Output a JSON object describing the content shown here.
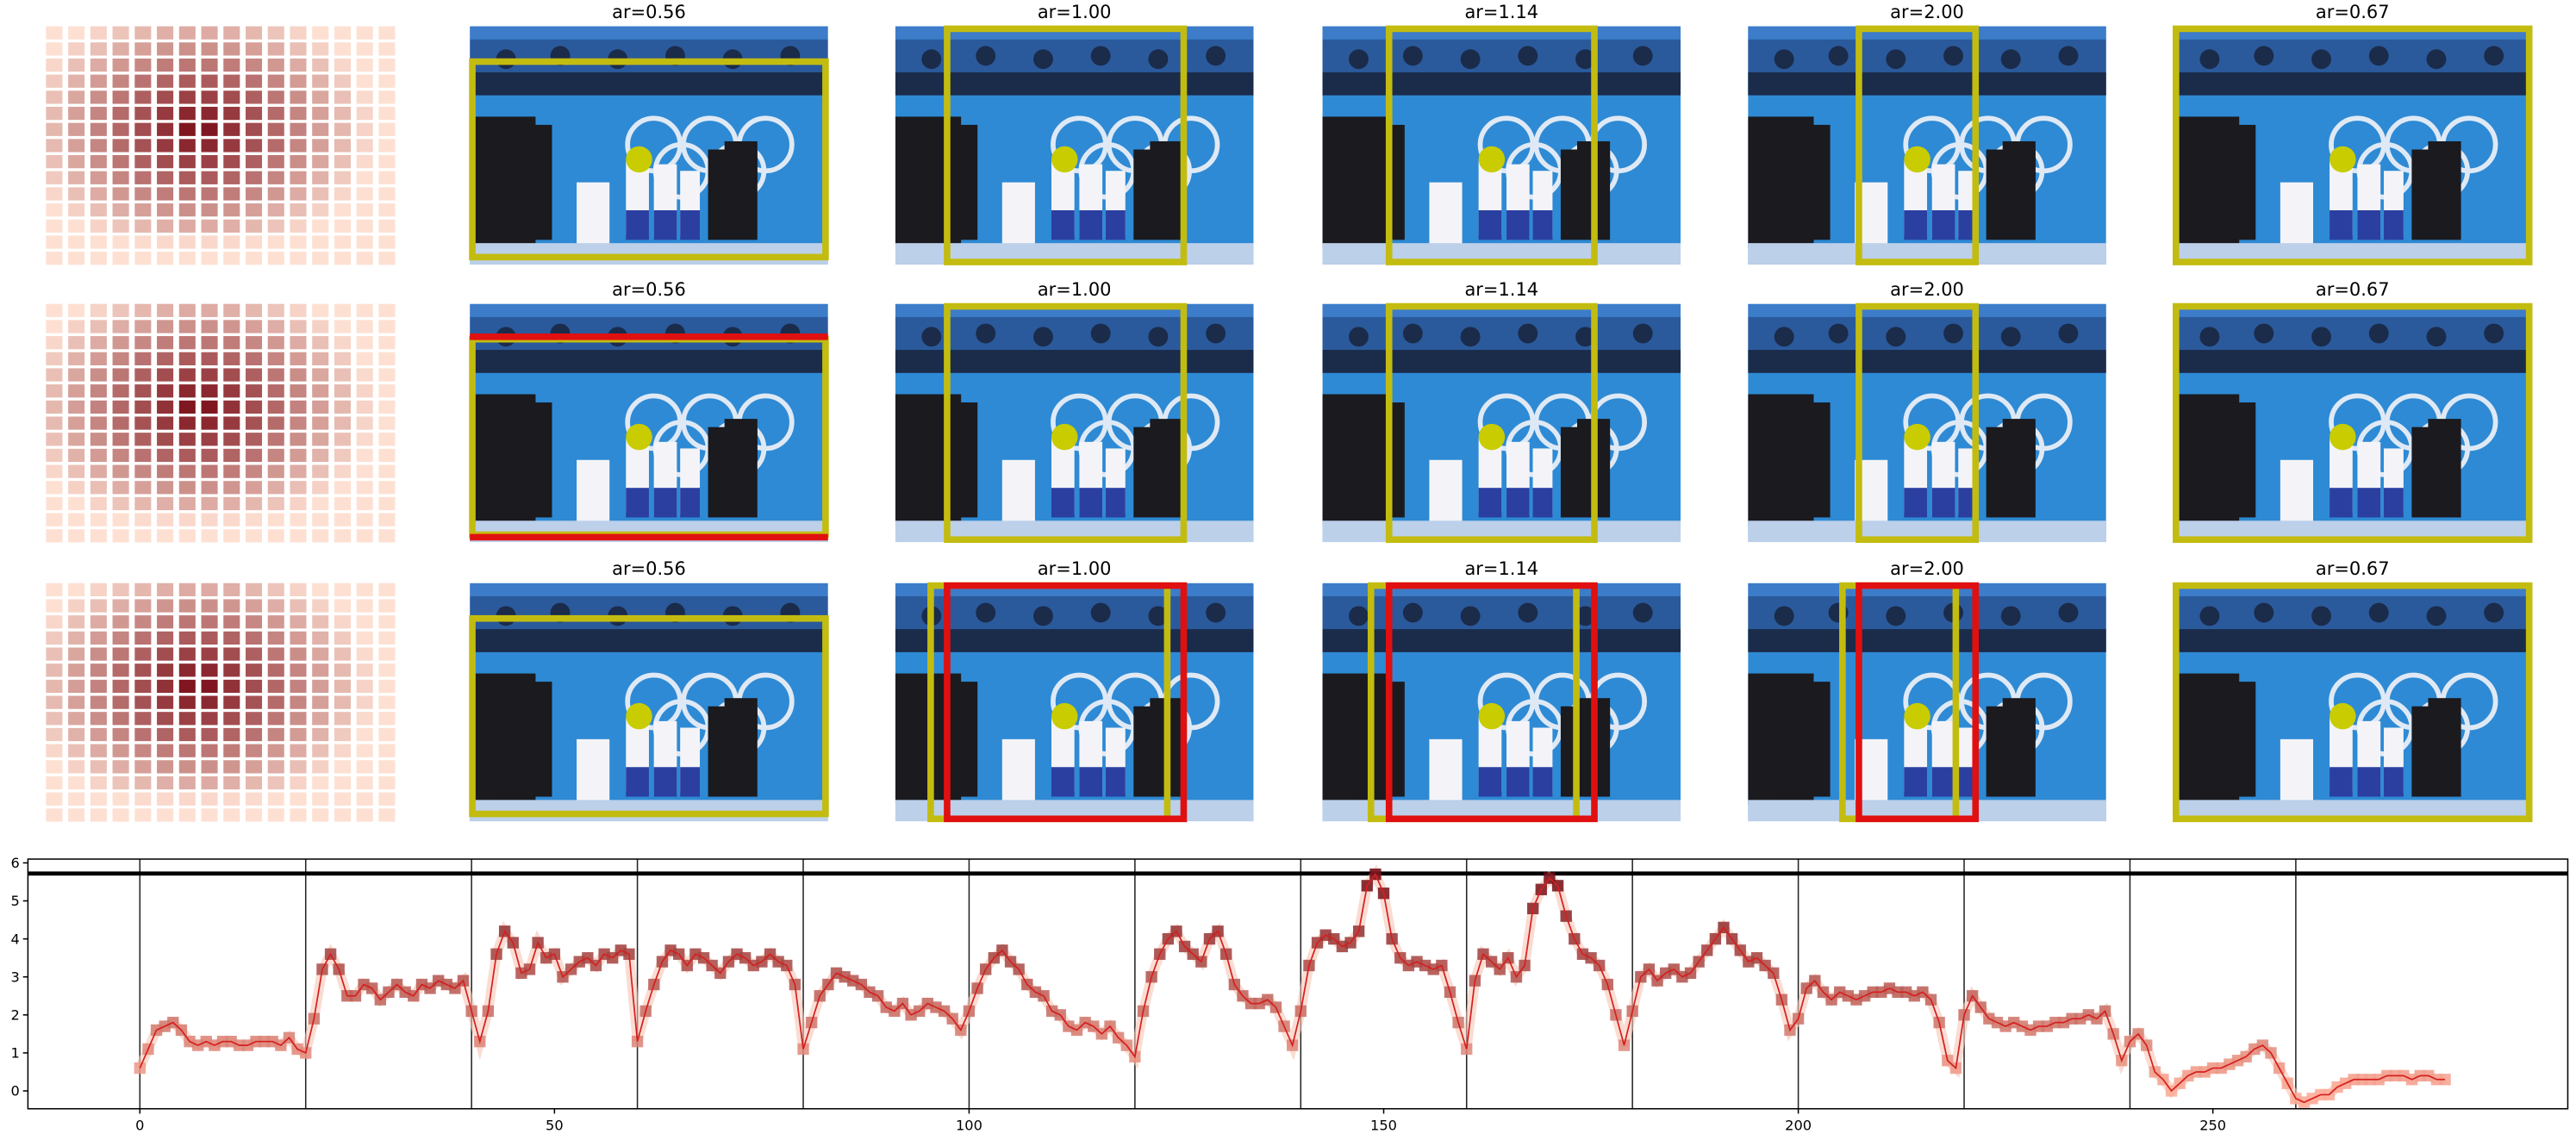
{
  "panel_titles": [
    [
      "ar=0.56",
      "ar=1.00",
      "ar=1.14",
      "ar=2.00",
      "ar=0.67"
    ],
    [
      "ar=0.56",
      "ar=1.00",
      "ar=1.14",
      "ar=2.00",
      "ar=0.67"
    ],
    [
      "ar=0.56",
      "ar=1.00",
      "ar=1.14",
      "ar=2.00",
      "ar=0.67"
    ]
  ],
  "chart_data": {
    "type": "line",
    "color": "#d42020",
    "xlim": [
      -13.5,
      292.8
    ],
    "ylim": [
      -0.47,
      6.1
    ],
    "xticks": [
      0,
      50,
      100,
      150,
      200,
      250
    ],
    "yticks": [
      0,
      1,
      2,
      3,
      4,
      5,
      6
    ],
    "vlines": [
      0,
      20,
      40,
      60,
      80,
      100,
      120,
      140,
      160,
      180,
      200,
      220,
      240,
      260
    ],
    "hline": 5.72,
    "x": [
      0,
      1,
      2,
      3,
      4,
      5,
      6,
      7,
      8,
      9,
      10,
      11,
      12,
      13,
      14,
      15,
      16,
      17,
      18,
      19,
      20,
      21,
      22,
      23,
      24,
      25,
      26,
      27,
      28,
      29,
      30,
      31,
      32,
      33,
      34,
      35,
      36,
      37,
      38,
      39,
      40,
      41,
      42,
      43,
      44,
      45,
      46,
      47,
      48,
      49,
      50,
      51,
      52,
      53,
      54,
      55,
      56,
      57,
      58,
      59,
      60,
      61,
      62,
      63,
      64,
      65,
      66,
      67,
      68,
      69,
      70,
      71,
      72,
      73,
      74,
      75,
      76,
      77,
      78,
      79,
      80,
      81,
      82,
      83,
      84,
      85,
      86,
      87,
      88,
      89,
      90,
      91,
      92,
      93,
      94,
      95,
      96,
      97,
      98,
      99,
      100,
      101,
      102,
      103,
      104,
      105,
      106,
      107,
      108,
      109,
      110,
      111,
      112,
      113,
      114,
      115,
      116,
      117,
      118,
      119,
      120,
      121,
      122,
      123,
      124,
      125,
      126,
      127,
      128,
      129,
      130,
      131,
      132,
      133,
      134,
      135,
      136,
      137,
      138,
      139,
      140,
      141,
      142,
      143,
      144,
      145,
      146,
      147,
      148,
      149,
      150,
      151,
      152,
      153,
      154,
      155,
      156,
      157,
      158,
      159,
      160,
      161,
      162,
      163,
      164,
      165,
      166,
      167,
      168,
      169,
      170,
      171,
      172,
      173,
      174,
      175,
      176,
      177,
      178,
      179,
      180,
      181,
      182,
      183,
      184,
      185,
      186,
      187,
      188,
      189,
      190,
      191,
      192,
      193,
      194,
      195,
      196,
      197,
      198,
      199,
      200,
      201,
      202,
      203,
      204,
      205,
      206,
      207,
      208,
      209,
      210,
      211,
      212,
      213,
      214,
      215,
      216,
      217,
      218,
      219,
      220,
      221,
      222,
      223,
      224,
      225,
      226,
      227,
      228,
      229,
      230,
      231,
      232,
      233,
      234,
      235,
      236,
      237,
      238,
      239,
      240,
      241,
      242,
      243,
      244,
      245,
      246,
      247,
      248,
      249,
      250,
      251,
      252,
      253,
      254,
      255,
      256,
      257,
      258,
      259,
      260,
      261,
      262,
      263,
      264,
      265,
      266,
      267,
      268,
      269,
      270,
      271,
      272,
      273,
      274,
      275,
      276,
      277,
      278
    ],
    "values": [
      0.6,
      1.1,
      1.6,
      1.7,
      1.8,
      1.6,
      1.3,
      1.2,
      1.3,
      1.2,
      1.3,
      1.3,
      1.2,
      1.2,
      1.3,
      1.3,
      1.3,
      1.2,
      1.4,
      1.1,
      1.0,
      1.9,
      3.2,
      3.6,
      3.2,
      2.5,
      2.5,
      2.8,
      2.7,
      2.4,
      2.6,
      2.8,
      2.6,
      2.5,
      2.8,
      2.7,
      2.9,
      2.8,
      2.7,
      2.9,
      2.1,
      1.3,
      2.1,
      3.6,
      4.2,
      3.9,
      3.1,
      3.2,
      3.9,
      3.5,
      3.6,
      3.0,
      3.2,
      3.4,
      3.5,
      3.3,
      3.6,
      3.5,
      3.7,
      3.6,
      1.3,
      2.1,
      2.8,
      3.4,
      3.7,
      3.6,
      3.3,
      3.6,
      3.5,
      3.3,
      3.1,
      3.4,
      3.6,
      3.5,
      3.3,
      3.4,
      3.6,
      3.4,
      3.3,
      2.8,
      1.1,
      1.8,
      2.5,
      2.8,
      3.1,
      3.0,
      2.9,
      2.8,
      2.6,
      2.5,
      2.2,
      2.1,
      2.3,
      2.0,
      2.1,
      2.3,
      2.2,
      2.1,
      1.9,
      1.6,
      2.1,
      2.7,
      3.2,
      3.5,
      3.7,
      3.4,
      3.2,
      2.8,
      2.6,
      2.5,
      2.1,
      2.0,
      1.7,
      1.6,
      1.8,
      1.7,
      1.5,
      1.7,
      1.4,
      1.2,
      0.9,
      2.1,
      3.0,
      3.6,
      4.0,
      4.2,
      3.8,
      3.6,
      3.4,
      4.0,
      4.2,
      3.6,
      2.8,
      2.5,
      2.3,
      2.3,
      2.4,
      2.2,
      1.7,
      1.2,
      2.1,
      3.3,
      3.9,
      4.1,
      4.0,
      3.8,
      3.9,
      4.2,
      5.4,
      5.7,
      5.2,
      4.0,
      3.5,
      3.3,
      3.4,
      3.3,
      3.2,
      3.3,
      2.6,
      1.8,
      1.1,
      2.9,
      3.6,
      3.4,
      3.2,
      3.5,
      3.0,
      3.3,
      4.8,
      5.3,
      5.6,
      5.4,
      4.6,
      4.0,
      3.6,
      3.5,
      3.3,
      2.8,
      2.0,
      1.2,
      2.1,
      3.0,
      3.2,
      2.9,
      3.1,
      3.2,
      3.0,
      3.1,
      3.4,
      3.7,
      4.0,
      4.3,
      4.0,
      3.7,
      3.4,
      3.5,
      3.3,
      3.1,
      2.4,
      1.6,
      1.9,
      2.7,
      2.9,
      2.6,
      2.4,
      2.6,
      2.5,
      2.4,
      2.5,
      2.6,
      2.6,
      2.7,
      2.6,
      2.6,
      2.5,
      2.6,
      2.4,
      1.8,
      0.8,
      0.6,
      2.0,
      2.5,
      2.2,
      1.9,
      1.8,
      1.7,
      1.8,
      1.7,
      1.6,
      1.7,
      1.7,
      1.8,
      1.8,
      1.9,
      1.9,
      2.0,
      1.9,
      2.1,
      1.5,
      0.8,
      1.3,
      1.5,
      1.2,
      0.5,
      0.3,
      0.0,
      0.2,
      0.4,
      0.5,
      0.5,
      0.6,
      0.6,
      0.7,
      0.8,
      0.9,
      1.1,
      1.2,
      1.0,
      0.6,
      0.2,
      -0.2,
      -0.3,
      -0.2,
      -0.1,
      -0.1,
      0.1,
      0.2,
      0.3,
      0.3,
      0.3,
      0.3,
      0.4,
      0.4,
      0.4,
      0.3,
      0.4,
      0.4,
      0.3,
      0.3
    ]
  }
}
